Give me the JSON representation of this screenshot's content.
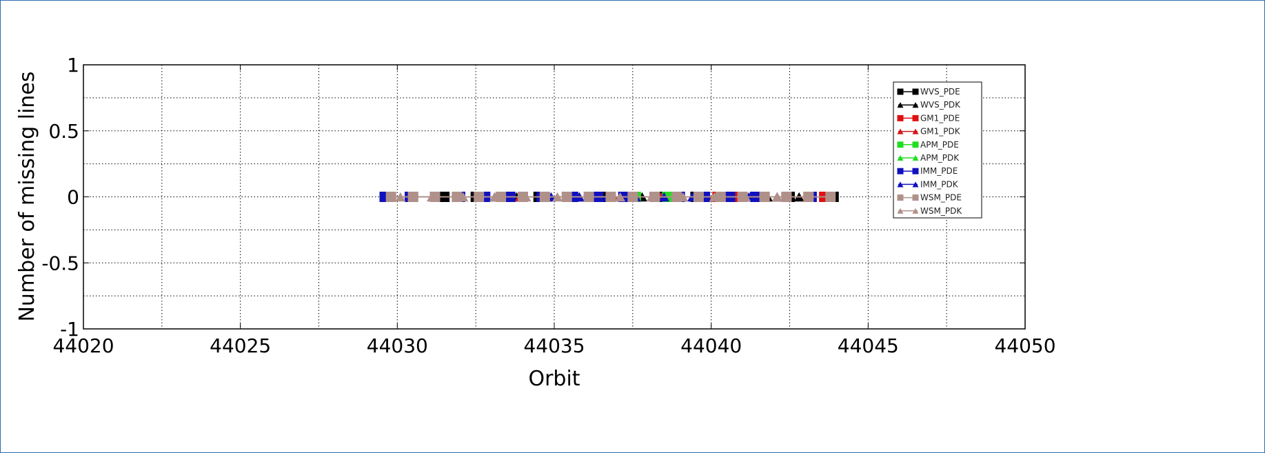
{
  "chart_data": {
    "type": "line",
    "title": "",
    "xlabel": "Orbit",
    "ylabel": "Number of missing lines",
    "xlim": [
      44020,
      44050
    ],
    "ylim": [
      -1,
      1
    ],
    "xticks": [
      44020,
      44025,
      44030,
      44035,
      44040,
      44045,
      44050
    ],
    "yticks": [
      -1,
      -0.5,
      0,
      0.5,
      1
    ],
    "yticklabels": [
      "-1",
      "-0.5",
      "0",
      "0.5",
      "1"
    ],
    "grid": true,
    "legend_position": "top-right",
    "series": [
      {
        "name": "WVS_PDE",
        "color": "#000000",
        "marker": "square",
        "x": [
          44029.6,
          44030.5,
          44031.5,
          44032.5,
          44033.5,
          44034.5,
          44035.5,
          44036.5,
          44037.5,
          44038.5,
          44039.5,
          44040.5,
          44041.5,
          44042.5,
          44043.9
        ],
        "y": [
          0,
          0,
          0,
          0,
          0,
          0,
          0,
          0,
          0,
          0,
          0,
          0,
          0,
          0,
          0
        ]
      },
      {
        "name": "WVS_PDK",
        "color": "#000000",
        "marker": "triangle",
        "x": [
          44033.8,
          44034.8,
          44035.8,
          44036.8,
          44037.8,
          44038.8,
          44039.8,
          44040.8,
          44041.8,
          44042.8,
          44043.6
        ],
        "y": [
          0,
          0,
          0,
          0,
          0,
          0,
          0,
          0,
          0,
          0,
          0
        ]
      },
      {
        "name": "GM1_PDE",
        "color": "#e01010",
        "marker": "square",
        "x": [
          44040.2,
          44040.9,
          44041.7,
          44042.4,
          44043.1,
          44043.6
        ],
        "y": [
          0,
          0,
          0,
          0,
          0,
          0
        ]
      },
      {
        "name": "GM1_PDK",
        "color": "#d01818",
        "marker": "triangle",
        "x": [
          44033.9,
          44034.6,
          44035.4,
          44036.1,
          44036.9,
          44037.6,
          44038.4,
          44039.1,
          44039.9,
          44040.6,
          44041.4,
          44042.1
        ],
        "y": [
          0,
          0,
          0,
          0,
          0,
          0,
          0,
          0,
          0,
          0,
          0,
          0
        ]
      },
      {
        "name": "APM_PDE",
        "color": "#22dd22",
        "marker": "square",
        "x": [
          44037.6,
          44038.6
        ],
        "y": [
          0,
          0
        ]
      },
      {
        "name": "APM_PDK",
        "color": "#22dd22",
        "marker": "triangle",
        "x": [
          44037.4,
          44038.2
        ],
        "y": [
          0,
          0
        ]
      },
      {
        "name": "IMM_PDE",
        "color": "#1010c0",
        "marker": "square",
        "x": [
          44029.6,
          44030.4,
          44031.2,
          44032.0,
          44032.8,
          44033.6,
          44034.6,
          44035.6,
          44036.4,
          44037.2,
          44038.2,
          44039.0,
          44039.8,
          44040.6,
          44041.4,
          44042.4,
          44043.2
        ],
        "y": [
          0,
          0,
          0,
          0,
          0,
          0,
          0,
          0,
          0,
          0,
          0,
          0,
          0,
          0,
          0,
          0,
          0
        ]
      },
      {
        "name": "IMM_PDK",
        "color": "#1010c0",
        "marker": "triangle",
        "x": [
          44033.1,
          44034.0,
          44034.9,
          44035.8,
          44036.7,
          44037.6,
          44038.5,
          44039.4,
          44040.3,
          44041.2,
          44042.1
        ],
        "y": [
          0,
          0,
          0,
          0,
          0,
          0,
          0,
          0,
          0,
          0,
          0
        ]
      },
      {
        "name": "WSM_PDE",
        "color": "#b0918a",
        "marker": "square",
        "x": [
          44029.8,
          44030.5,
          44031.2,
          44031.9,
          44032.6,
          44033.3,
          44034.0,
          44034.7,
          44035.4,
          44036.1,
          44036.8,
          44037.5,
          44038.2,
          44038.9,
          44039.6,
          44040.3,
          44041.0,
          44041.7,
          44042.4,
          44043.1,
          44043.8
        ],
        "y": [
          0,
          0,
          0,
          0,
          0,
          0,
          0,
          0,
          0,
          0,
          0,
          0,
          0,
          0,
          0,
          0,
          0,
          0,
          0,
          0,
          0
        ]
      },
      {
        "name": "WSM_PDK",
        "color": "#b0918a",
        "marker": "triangle",
        "x": [
          44030.1,
          44031.1,
          44032.1,
          44033.1,
          44034.1,
          44035.1,
          44036.1,
          44037.1,
          44038.1,
          44039.1,
          44040.1,
          44041.1,
          44042.1,
          44043.1
        ],
        "y": [
          0,
          0,
          0,
          0,
          0,
          0,
          0,
          0,
          0,
          0,
          0,
          0,
          0,
          0
        ]
      }
    ]
  }
}
